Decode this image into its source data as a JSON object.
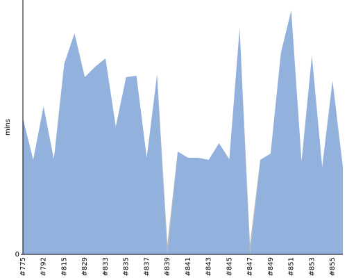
{
  "chart_data": {
    "type": "area",
    "stacked": true,
    "y_label": "mins",
    "categories": [
      "#775",
      null,
      "#792",
      null,
      "#815",
      null,
      "#829",
      null,
      "#833",
      null,
      "#835",
      null,
      "#837",
      null,
      "#839",
      null,
      "#841",
      null,
      "#843",
      null,
      "#845",
      null,
      "#847",
      null,
      "#849",
      null,
      "#851",
      null,
      "#853",
      null,
      "#855",
      null
    ],
    "series": [
      {
        "color": "#92b1dc",
        "values": [
          19.6,
          13.6,
          21.3,
          13.7,
          27.4,
          31.8,
          25.5,
          27.0,
          28.2,
          18.4,
          25.5,
          25.7,
          13.9,
          25.9,
          0,
          14.8,
          13.9,
          13.9,
          13.6,
          16.0,
          13.7,
          32.6,
          0,
          13.6,
          14.5,
          29.0,
          35.1,
          13.4,
          28.6,
          12.6,
          25.0,
          12.6
        ]
      },
      {
        "color": "#b8b8b8",
        "values": [
          0,
          0,
          0,
          0,
          0,
          0,
          0,
          0,
          0,
          0,
          0,
          0,
          0,
          0,
          1.5,
          0,
          0,
          0,
          0,
          0,
          0,
          0,
          1.5,
          0,
          0,
          0,
          0,
          0,
          0,
          0,
          0,
          0
        ]
      }
    ],
    "ylim": [
      0,
      36.6
    ],
    "yticks": [
      0
    ]
  }
}
